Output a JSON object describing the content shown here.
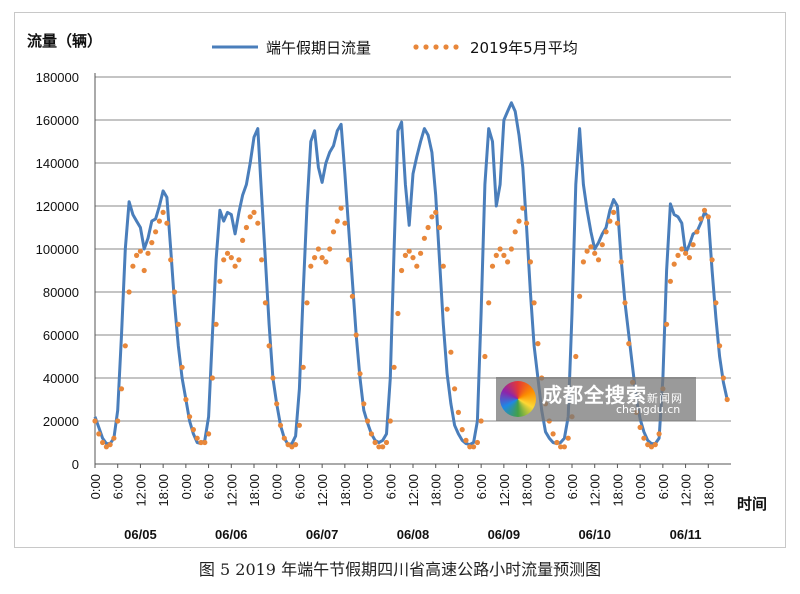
{
  "caption": "图 5 2019 年端午节假期四川省高速公路小时流量预测图",
  "watermark": {
    "name": "成都全搜索",
    "suffix": "新闻网",
    "domain": "chengdu.cn"
  },
  "colors": {
    "forecast": "#4a7ebb",
    "may_avg": "#e8873a",
    "grid": "#888888"
  },
  "chart_data": {
    "type": "line",
    "ylabel": "流量（辆）",
    "xlabel": "时间",
    "ylim": [
      0,
      180000
    ],
    "yticks": [
      0,
      20000,
      40000,
      60000,
      80000,
      100000,
      120000,
      140000,
      160000,
      180000
    ],
    "xticks": [
      "0:00",
      "6:00",
      "12:00",
      "18:00"
    ],
    "days": [
      "06/05",
      "06/06",
      "06/07",
      "06/08",
      "06/09",
      "06/10",
      "06/11"
    ],
    "grid": true,
    "legend_position": "top",
    "series": [
      {
        "name": "端午假期日流量",
        "style": "solid",
        "values": [
          22000,
          17000,
          12000,
          9500,
          9500,
          12000,
          25000,
          60000,
          100000,
          122000,
          116000,
          113000,
          110000,
          100000,
          105000,
          113000,
          114000,
          120000,
          127000,
          124000,
          100000,
          75000,
          55000,
          40000,
          30000,
          20000,
          14000,
          10000,
          9500,
          11000,
          22000,
          60000,
          95000,
          118000,
          113000,
          117000,
          116000,
          107000,
          117000,
          125000,
          130000,
          140000,
          152000,
          156000,
          125000,
          95000,
          65000,
          40000,
          28000,
          18000,
          12000,
          9000,
          9500,
          13000,
          35000,
          80000,
          120000,
          150000,
          155000,
          138000,
          131000,
          140000,
          145000,
          148000,
          155000,
          158000,
          135000,
          110000,
          85000,
          60000,
          40000,
          25000,
          19000,
          14000,
          11000,
          10000,
          11000,
          14000,
          40000,
          100000,
          155000,
          159000,
          130000,
          111000,
          135000,
          143000,
          150000,
          156000,
          153000,
          145000,
          125000,
          95000,
          65000,
          42000,
          28000,
          18000,
          14000,
          11000,
          9500,
          9000,
          10000,
          20000,
          70000,
          130000,
          156000,
          150000,
          120000,
          130000,
          160000,
          164000,
          168000,
          164000,
          153000,
          138000,
          110000,
          80000,
          55000,
          40000,
          25000,
          15000,
          12000,
          10000,
          9500,
          10000,
          12000,
          22000,
          70000,
          130000,
          156000,
          130000,
          118000,
          108000,
          100000,
          103000,
          107000,
          110000,
          118000,
          123000,
          120000,
          95000,
          75000,
          60000,
          45000,
          30000,
          21000,
          15000,
          11000,
          9500,
          9500,
          12000,
          40000,
          90000,
          121000,
          116000,
          115000,
          112000,
          98000,
          102000,
          107000,
          108000,
          112000,
          117000,
          115000,
          90000,
          68000,
          50000,
          38000,
          30000
        ]
      },
      {
        "name": "2019年5月平均",
        "style": "dotted",
        "values": [
          20000,
          14000,
          10000,
          8000,
          9000,
          12000,
          20000,
          35000,
          55000,
          80000,
          92000,
          97000,
          99000,
          90000,
          98000,
          103000,
          108000,
          113000,
          117000,
          112000,
          95000,
          80000,
          65000,
          45000,
          30000,
          22000,
          16000,
          12000,
          10000,
          10000,
          14000,
          40000,
          65000,
          85000,
          95000,
          98000,
          96000,
          92000,
          95000,
          104000,
          110000,
          115000,
          117000,
          112000,
          95000,
          75000,
          55000,
          40000,
          28000,
          18000,
          12000,
          9000,
          8000,
          9000,
          18000,
          45000,
          75000,
          92000,
          96000,
          100000,
          96000,
          94000,
          100000,
          108000,
          113000,
          119000,
          112000,
          95000,
          78000,
          60000,
          42000,
          28000,
          20000,
          14000,
          10000,
          8000,
          8000,
          10000,
          20000,
          45000,
          70000,
          90000,
          97000,
          99000,
          96000,
          92000,
          98000,
          105000,
          110000,
          115000,
          117000,
          110000,
          92000,
          72000,
          52000,
          35000,
          24000,
          16000,
          11000,
          8000,
          8000,
          10000,
          20000,
          50000,
          75000,
          92000,
          97000,
          100000,
          97000,
          94000,
          100000,
          108000,
          113000,
          119000,
          112000,
          94000,
          75000,
          56000,
          40000,
          28000,
          20000,
          14000,
          10000,
          8000,
          8000,
          12000,
          22000,
          50000,
          78000,
          94000,
          99000,
          101000,
          98000,
          95000,
          102000,
          108000,
          113000,
          117000,
          112000,
          94000,
          75000,
          56000,
          38000,
          24000,
          17000,
          12000,
          9000,
          8000,
          9000,
          14000,
          35000,
          65000,
          85000,
          93000,
          97000,
          100000,
          98000,
          96000,
          102000,
          108000,
          114000,
          118000,
          115000,
          95000,
          75000,
          55000,
          40000,
          30000
        ]
      }
    ]
  }
}
